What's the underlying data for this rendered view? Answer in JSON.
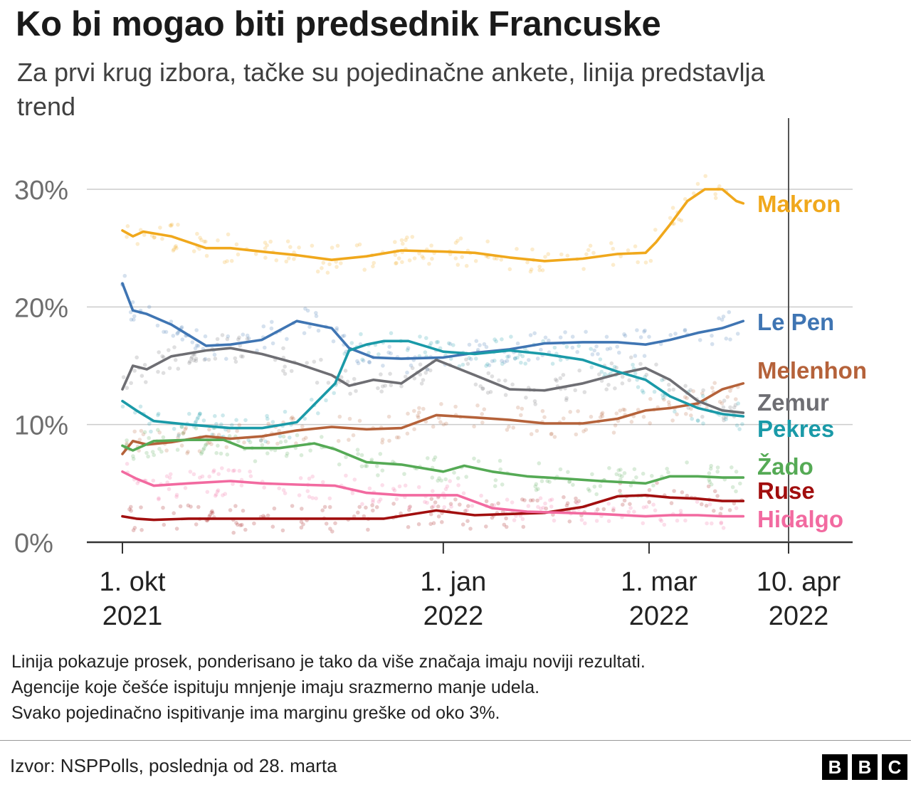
{
  "title": "Ko bi mogao biti predsednik Francuske",
  "subtitle": "Za prvi krug izbora, tačke su pojedinačne ankete, linija predstavlja trend",
  "note_lines": [
    "Linija pokazuje prosek, ponderisano je tako da više značaja imaju noviji rezultati.",
    "Agencije koje češće ispituju mnjenje imaju srazmerno manje udela.",
    "Svako pojedinačno ispitivanje ima marginu greške od oko 3%."
  ],
  "source": "Izvor: NSPPolls, poslednja od 28. marta",
  "logo": [
    "B",
    "B",
    "C"
  ],
  "chart_data": {
    "type": "line",
    "x_type": "date",
    "x_range": [
      "2021-10-01",
      "2022-04-18"
    ],
    "ylim": [
      0,
      30
    ],
    "y_ticks": [
      0,
      10,
      20,
      30
    ],
    "y_tick_labels": [
      "0%",
      "10%",
      "20%",
      "30%"
    ],
    "x_ticks": [
      {
        "date": "2021-10-01",
        "label": [
          "1. okt",
          "2021"
        ]
      },
      {
        "date": "2022-01-01",
        "label": [
          "1. jan",
          "2022"
        ]
      },
      {
        "date": "2022-03-01",
        "label": [
          "1. mar",
          "2022"
        ]
      },
      {
        "date": "2022-04-10",
        "label": [
          "10. apr",
          "2022"
        ]
      }
    ],
    "election_marker": "2022-04-10",
    "grid": true,
    "legend": "direct labels at line ends",
    "series": [
      {
        "name": "Makron",
        "color": "#f0a81c",
        "x": [
          "2021-10-01",
          "2021-10-04",
          "2021-10-07",
          "2021-10-15",
          "2021-10-25",
          "2021-11-01",
          "2021-11-10",
          "2021-11-20",
          "2021-11-30",
          "2021-12-10",
          "2021-12-20",
          "2022-01-01",
          "2022-01-10",
          "2022-01-20",
          "2022-01-30",
          "2022-02-10",
          "2022-02-20",
          "2022-02-28",
          "2022-03-03",
          "2022-03-07",
          "2022-03-12",
          "2022-03-17",
          "2022-03-22",
          "2022-03-26",
          "2022-03-28"
        ],
        "y": [
          26.5,
          26.0,
          26.4,
          26.0,
          25.0,
          25.0,
          24.7,
          24.4,
          24.0,
          24.3,
          24.8,
          24.7,
          24.6,
          24.2,
          23.9,
          24.1,
          24.5,
          24.6,
          25.5,
          27.0,
          29.0,
          30.0,
          30.0,
          29.0,
          28.8
        ]
      },
      {
        "name": "Le Pen",
        "color": "#3f75b3",
        "x": [
          "2021-10-01",
          "2021-10-04",
          "2021-10-08",
          "2021-10-15",
          "2021-10-25",
          "2021-11-01",
          "2021-11-10",
          "2021-11-20",
          "2021-11-30",
          "2021-12-05",
          "2021-12-12",
          "2021-12-20",
          "2022-01-01",
          "2022-01-10",
          "2022-01-20",
          "2022-01-30",
          "2022-02-10",
          "2022-02-20",
          "2022-02-28",
          "2022-03-07",
          "2022-03-15",
          "2022-03-22",
          "2022-03-28"
        ],
        "y": [
          22.0,
          19.7,
          19.4,
          18.5,
          16.7,
          16.8,
          17.2,
          18.8,
          18.2,
          16.5,
          15.7,
          15.6,
          15.7,
          16.1,
          16.4,
          16.9,
          17.0,
          17.0,
          16.8,
          17.2,
          17.8,
          18.2,
          18.8
        ]
      },
      {
        "name": "Melenhon",
        "color": "#b5623a",
        "x": [
          "2021-10-01",
          "2021-10-04",
          "2021-10-08",
          "2021-10-15",
          "2021-10-25",
          "2021-11-01",
          "2021-11-10",
          "2021-11-20",
          "2021-11-30",
          "2021-12-10",
          "2021-12-20",
          "2021-12-30",
          "2022-01-10",
          "2022-01-20",
          "2022-01-30",
          "2022-02-10",
          "2022-02-20",
          "2022-02-28",
          "2022-03-07",
          "2022-03-15",
          "2022-03-22",
          "2022-03-28"
        ],
        "y": [
          7.5,
          8.6,
          8.3,
          8.5,
          9.0,
          8.8,
          9.0,
          9.5,
          9.8,
          9.6,
          9.7,
          10.8,
          10.6,
          10.4,
          10.1,
          10.1,
          10.5,
          11.2,
          11.4,
          11.8,
          13.0,
          13.5
        ]
      },
      {
        "name": "Zemur",
        "color": "#6e6e73",
        "x": [
          "2021-10-01",
          "2021-10-04",
          "2021-10-08",
          "2021-10-15",
          "2021-10-25",
          "2021-11-01",
          "2021-11-10",
          "2021-11-20",
          "2021-11-30",
          "2021-12-05",
          "2021-12-12",
          "2021-12-20",
          "2021-12-30",
          "2022-01-10",
          "2022-01-20",
          "2022-01-30",
          "2022-02-10",
          "2022-02-20",
          "2022-02-28",
          "2022-03-07",
          "2022-03-15",
          "2022-03-22",
          "2022-03-28"
        ],
        "y": [
          13.0,
          15.0,
          14.7,
          15.8,
          16.3,
          16.5,
          16.0,
          15.2,
          14.2,
          13.3,
          13.8,
          13.5,
          15.5,
          14.2,
          13.0,
          12.9,
          13.5,
          14.3,
          14.8,
          13.8,
          12.0,
          11.2,
          11.0
        ]
      },
      {
        "name": "Pekres",
        "color": "#1a9aa8",
        "x": [
          "2021-10-01",
          "2021-10-05",
          "2021-10-10",
          "2021-10-20",
          "2021-11-01",
          "2021-11-10",
          "2021-11-20",
          "2021-12-01",
          "2021-12-05",
          "2021-12-10",
          "2021-12-15",
          "2021-12-22",
          "2022-01-01",
          "2022-01-10",
          "2022-01-20",
          "2022-01-30",
          "2022-02-10",
          "2022-02-20",
          "2022-02-28",
          "2022-03-07",
          "2022-03-15",
          "2022-03-22",
          "2022-03-28"
        ],
        "y": [
          12.0,
          11.2,
          10.3,
          10.0,
          9.7,
          9.7,
          10.2,
          13.5,
          16.3,
          16.8,
          17.1,
          17.1,
          16.2,
          16.0,
          16.3,
          16.0,
          15.5,
          14.5,
          13.8,
          12.4,
          11.4,
          10.9,
          10.7
        ]
      },
      {
        "name": "Žado",
        "color": "#55aa55",
        "x": [
          "2021-10-01",
          "2021-10-04",
          "2021-10-10",
          "2021-10-20",
          "2021-10-30",
          "2021-11-05",
          "2021-11-15",
          "2021-11-25",
          "2021-12-01",
          "2021-12-10",
          "2021-12-20",
          "2022-01-01",
          "2022-01-07",
          "2022-01-15",
          "2022-01-25",
          "2022-02-05",
          "2022-02-15",
          "2022-02-28",
          "2022-03-07",
          "2022-03-15",
          "2022-03-22",
          "2022-03-28"
        ],
        "y": [
          8.2,
          7.8,
          8.6,
          8.7,
          8.7,
          8.0,
          8.0,
          8.4,
          7.9,
          6.8,
          6.6,
          6.0,
          6.5,
          6.0,
          5.6,
          5.4,
          5.2,
          5.0,
          5.6,
          5.6,
          5.5,
          5.5
        ]
      },
      {
        "name": "Ruse",
        "color": "#a10e0e",
        "x": [
          "2021-10-01",
          "2021-10-05",
          "2021-10-10",
          "2021-10-20",
          "2021-11-01",
          "2021-11-15",
          "2021-12-01",
          "2021-12-15",
          "2021-12-30",
          "2022-01-10",
          "2022-01-20",
          "2022-01-30",
          "2022-02-10",
          "2022-02-20",
          "2022-02-28",
          "2022-03-07",
          "2022-03-15",
          "2022-03-22",
          "2022-03-28"
        ],
        "y": [
          2.2,
          2.0,
          1.9,
          2.0,
          2.0,
          2.0,
          2.0,
          2.0,
          2.7,
          2.3,
          2.4,
          2.5,
          3.0,
          3.9,
          4.0,
          3.8,
          3.7,
          3.5,
          3.5
        ]
      },
      {
        "name": "Hidalgo",
        "color": "#f26aa0",
        "x": [
          "2021-10-01",
          "2021-10-05",
          "2021-10-10",
          "2021-10-20",
          "2021-11-01",
          "2021-11-10",
          "2021-11-20",
          "2021-12-01",
          "2021-12-10",
          "2021-12-20",
          "2022-01-01",
          "2022-01-05",
          "2022-01-15",
          "2022-01-25",
          "2022-02-05",
          "2022-02-15",
          "2022-02-28",
          "2022-03-07",
          "2022-03-15",
          "2022-03-22",
          "2022-03-28"
        ],
        "y": [
          6.0,
          5.4,
          4.8,
          5.0,
          5.2,
          5.0,
          4.9,
          4.8,
          4.2,
          4.0,
          4.0,
          4.0,
          2.9,
          2.6,
          2.5,
          2.4,
          2.2,
          2.3,
          2.3,
          2.2,
          2.2
        ]
      }
    ]
  }
}
